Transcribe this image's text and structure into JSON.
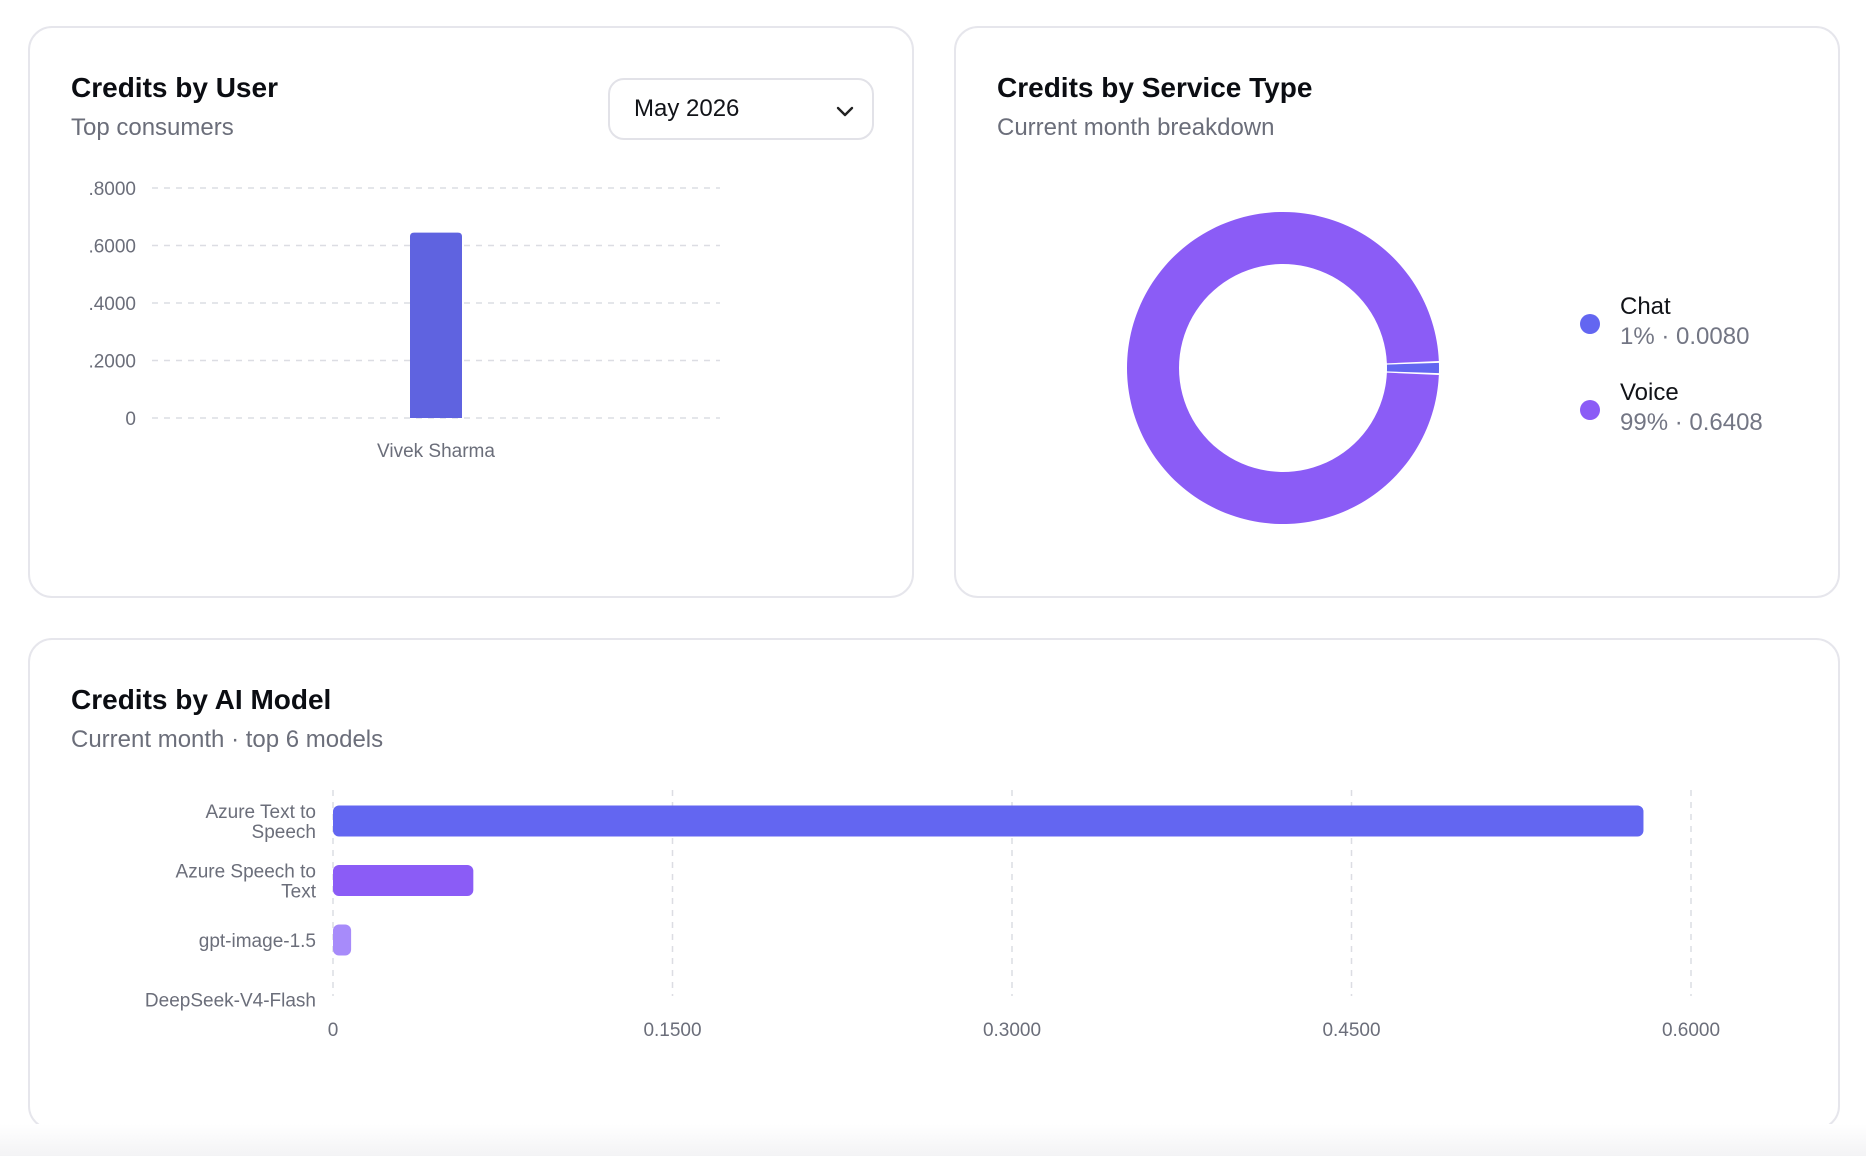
{
  "user_card": {
    "title": "Credits by User",
    "subtitle": "Top consumers",
    "month_select": {
      "value": "May 2026"
    }
  },
  "service_card": {
    "title": "Credits by Service Type",
    "subtitle": "Current month breakdown",
    "legend": [
      {
        "name": "Chat",
        "value_text": "1% · 0.0080",
        "color": "#6366f1"
      },
      {
        "name": "Voice",
        "value_text": "99% · 0.6408",
        "color": "#8b5cf6"
      }
    ]
  },
  "model_card": {
    "title": "Credits by AI Model",
    "subtitle": "Current month · top 6 models"
  },
  "chart_data": [
    {
      "type": "bar",
      "orientation": "vertical",
      "categories": [
        "Vivek Sharma"
      ],
      "values": [
        0.645
      ],
      "yticks": [
        ".8000",
        ".6000",
        ".4000",
        ".2000",
        "0"
      ],
      "ytick_values": [
        0.8,
        0.6,
        0.4,
        0.2,
        0
      ],
      "ylim": [
        0,
        0.8
      ],
      "grid": true,
      "color": "#5f63e0"
    },
    {
      "type": "pie",
      "variant": "donut",
      "labels": [
        "Chat",
        "Voice"
      ],
      "values": [
        0.008,
        0.6408
      ],
      "colors": [
        "#6366f1",
        "#8b5cf6"
      ],
      "legend": "right"
    },
    {
      "type": "bar",
      "orientation": "horizontal",
      "categories": [
        [
          "Azure Text to",
          "Speech"
        ],
        [
          "Azure Speech to",
          "Text"
        ],
        [
          "gpt-image-1.5"
        ],
        [
          "DeepSeek-V4-Flash"
        ]
      ],
      "values": [
        0.579,
        0.062,
        0.008,
        0.0
      ],
      "colors": [
        "#6366f1",
        "#8b5cf6",
        "#a78bfa",
        "#c4b5fd"
      ],
      "xticks": [
        "0",
        "0.1500",
        "0.3000",
        "0.4500",
        "0.6000"
      ],
      "xtick_values": [
        0,
        0.15,
        0.3,
        0.45,
        0.6
      ],
      "xlim": [
        0,
        0.6
      ],
      "grid": true
    }
  ]
}
